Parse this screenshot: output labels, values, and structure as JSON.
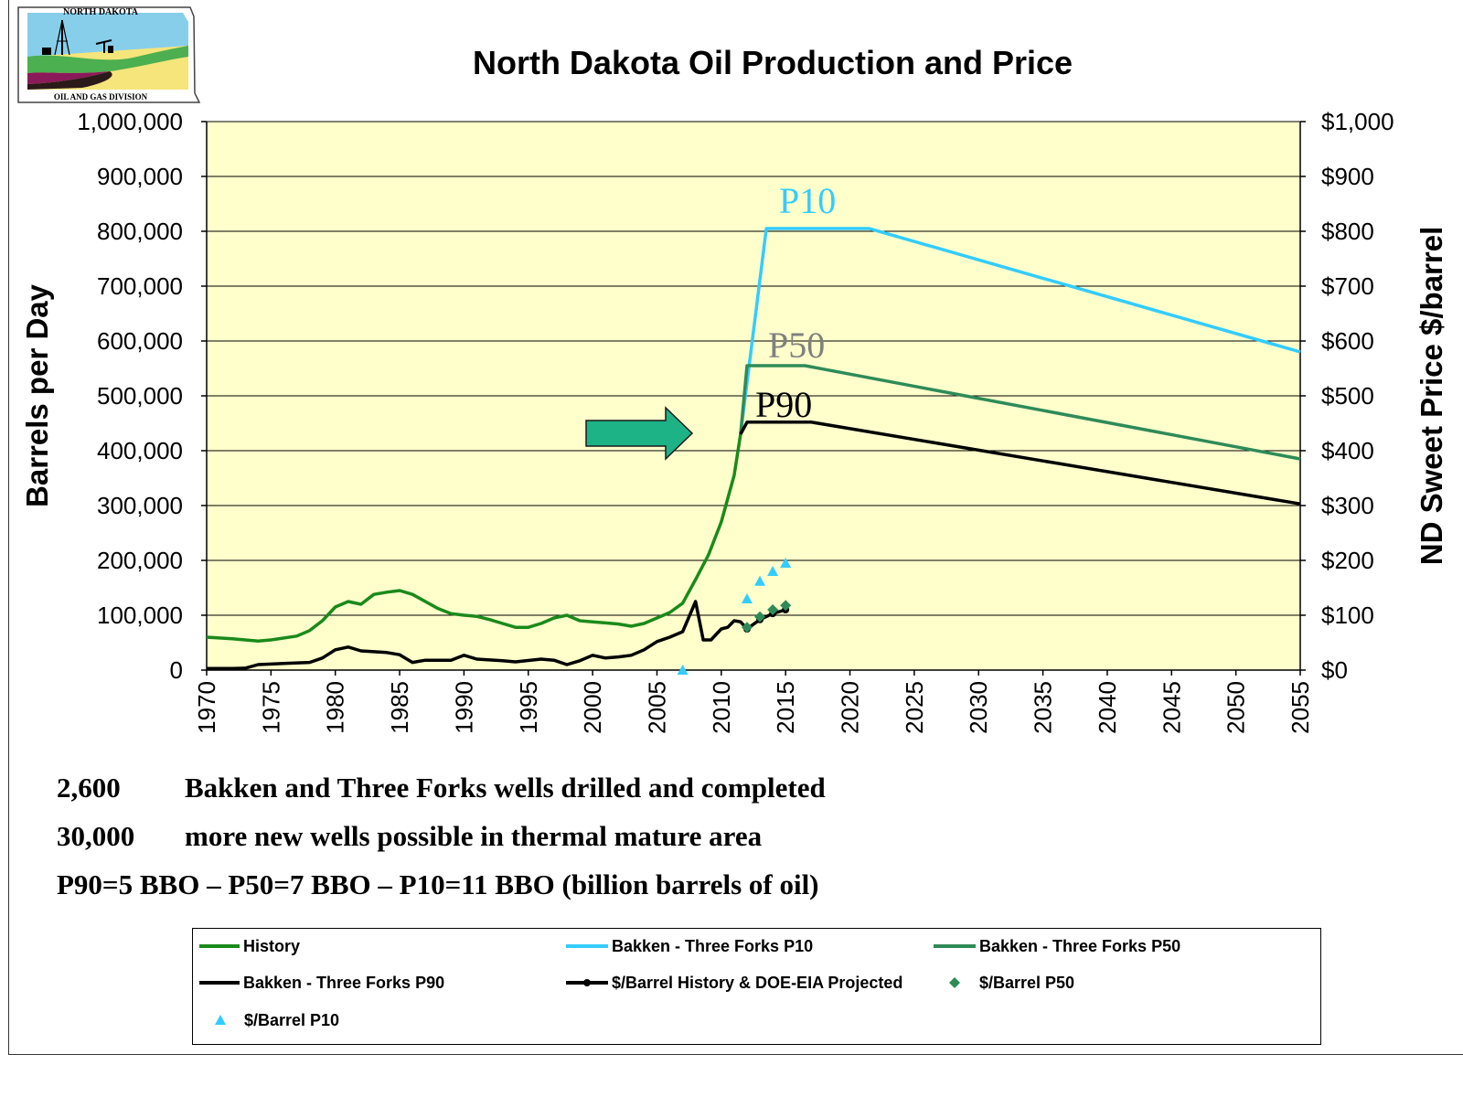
{
  "logo": {
    "top_text": "NORTH DAKOTA",
    "bottom_text": "OIL AND GAS DIVISION"
  },
  "colors": {
    "plot_bg": "#ffffcc",
    "history": "#1a8a1a",
    "p10": "#33ccff",
    "p50": "#2e8b57",
    "p90": "#000000",
    "price": "#000000",
    "arrow": "#1db386",
    "label_p50": "#808080"
  },
  "chart_data": {
    "type": "line",
    "title": "North Dakota Oil Production and Price",
    "ylabel": "Barrels per Day",
    "y2label": "ND Sweet Price $/barrel",
    "xlim": [
      1970,
      2055
    ],
    "ylim": [
      0,
      1000000
    ],
    "y2lim": [
      0,
      1000
    ],
    "x_ticks": [
      "1970",
      "1975",
      "1980",
      "1985",
      "1990",
      "1995",
      "2000",
      "2005",
      "2010",
      "2015",
      "2020",
      "2025",
      "2030",
      "2035",
      "2040",
      "2045",
      "2050",
      "2055"
    ],
    "y_ticks": [
      "0",
      "100,000",
      "200,000",
      "300,000",
      "400,000",
      "500,000",
      "600,000",
      "700,000",
      "800,000",
      "900,000",
      "1,000,000"
    ],
    "y2_ticks": [
      "$0",
      "$100",
      "$200",
      "$300",
      "$400",
      "$500",
      "$600",
      "$700",
      "$800",
      "$900",
      "$1,000"
    ],
    "grid": true,
    "legend_position": "bottom",
    "series": [
      {
        "name": "History",
        "axis": "left",
        "points": [
          [
            1970,
            60000
          ],
          [
            1972,
            57000
          ],
          [
            1974,
            53000
          ],
          [
            1975,
            55000
          ],
          [
            1977,
            62000
          ],
          [
            1978,
            72000
          ],
          [
            1979,
            90000
          ],
          [
            1980,
            115000
          ],
          [
            1981,
            125000
          ],
          [
            1982,
            120000
          ],
          [
            1983,
            138000
          ],
          [
            1984,
            142000
          ],
          [
            1985,
            145000
          ],
          [
            1986,
            138000
          ],
          [
            1987,
            125000
          ],
          [
            1988,
            112000
          ],
          [
            1989,
            103000
          ],
          [
            1990,
            100000
          ],
          [
            1991,
            98000
          ],
          [
            1992,
            92000
          ],
          [
            1993,
            85000
          ],
          [
            1994,
            78000
          ],
          [
            1995,
            78000
          ],
          [
            1996,
            85000
          ],
          [
            1997,
            95000
          ],
          [
            1998,
            100000
          ],
          [
            1999,
            90000
          ],
          [
            2000,
            88000
          ],
          [
            2001,
            86000
          ],
          [
            2002,
            84000
          ],
          [
            2003,
            80000
          ],
          [
            2004,
            85000
          ],
          [
            2005,
            95000
          ],
          [
            2006,
            105000
          ],
          [
            2007,
            122000
          ],
          [
            2008,
            165000
          ],
          [
            2009,
            210000
          ],
          [
            2010,
            270000
          ],
          [
            2011,
            355000
          ],
          [
            2011.5,
            430000
          ]
        ]
      },
      {
        "name": "Bakken - Three Forks P10",
        "axis": "left",
        "points": [
          [
            2011.5,
            430000
          ],
          [
            2013.5,
            805000
          ],
          [
            2021.5,
            805000
          ],
          [
            2055,
            580000
          ]
        ]
      },
      {
        "name": "Bakken - Three Forks P50",
        "axis": "left",
        "points": [
          [
            2011.5,
            430000
          ],
          [
            2012,
            555000
          ],
          [
            2016.5,
            555000
          ],
          [
            2055,
            385000
          ]
        ]
      },
      {
        "name": "Bakken - Three Forks P90",
        "axis": "left",
        "points": [
          [
            2011.5,
            430000
          ],
          [
            2012,
            452000
          ],
          [
            2017,
            452000
          ],
          [
            2055,
            303000
          ]
        ]
      },
      {
        "name": "$/Barrel History & DOE-EIA Projected",
        "axis": "right",
        "points": [
          [
            1970,
            3
          ],
          [
            1972,
            3
          ],
          [
            1973,
            3.5
          ],
          [
            1974,
            10
          ],
          [
            1976,
            12
          ],
          [
            1978,
            14
          ],
          [
            1979,
            22
          ],
          [
            1980,
            37
          ],
          [
            1981,
            42
          ],
          [
            1982,
            35
          ],
          [
            1984,
            32
          ],
          [
            1985,
            28
          ],
          [
            1986,
            14
          ],
          [
            1987,
            18
          ],
          [
            1989,
            18
          ],
          [
            1990,
            27
          ],
          [
            1991,
            20
          ],
          [
            1993,
            17
          ],
          [
            1994,
            15
          ],
          [
            1996,
            20
          ],
          [
            1997,
            18
          ],
          [
            1998,
            10
          ],
          [
            1999,
            17
          ],
          [
            2000,
            27
          ],
          [
            2001,
            22
          ],
          [
            2002,
            24
          ],
          [
            2003,
            27
          ],
          [
            2004,
            37
          ],
          [
            2005,
            52
          ],
          [
            2006,
            60
          ],
          [
            2007,
            70
          ],
          [
            2008,
            125
          ],
          [
            2008.6,
            55
          ],
          [
            2009.2,
            55
          ],
          [
            2010,
            75
          ],
          [
            2010.5,
            78
          ],
          [
            2011,
            90
          ],
          [
            2011.5,
            88
          ],
          [
            2012,
            75
          ],
          [
            2013,
            92
          ],
          [
            2014,
            103
          ],
          [
            2015,
            110
          ]
        ]
      },
      {
        "name": "$/Barrel P50",
        "axis": "right",
        "type": "scatter",
        "points": [
          [
            2012,
            78
          ],
          [
            2013,
            97
          ],
          [
            2014,
            110
          ],
          [
            2015,
            118
          ]
        ]
      },
      {
        "name": "$/Barrel P10",
        "axis": "right",
        "type": "scatter",
        "points": [
          [
            2007,
            0
          ],
          [
            2012,
            130
          ],
          [
            2013,
            162
          ],
          [
            2014,
            180
          ],
          [
            2015,
            195
          ]
        ]
      }
    ],
    "annotations": [
      {
        "text": "P10",
        "color": "p10"
      },
      {
        "text": "P50",
        "color": "label_p50"
      },
      {
        "text": "P90",
        "color": "p90"
      }
    ]
  },
  "notes": [
    {
      "num": "2,600",
      "text": "Bakken and Three Forks wells drilled and completed"
    },
    {
      "num": "30,000",
      "text": "more new wells possible in thermal mature area"
    },
    {
      "num": "",
      "text": "P90=5 BBO – P50=7 BBO – P10=11 BBO (billion barrels of oil)"
    }
  ],
  "legend": {
    "history": "History",
    "p10": "Bakken - Three Forks P10",
    "p50": "Bakken - Three Forks P50",
    "p90": "Bakken - Three Forks P90",
    "price": "$/Barrel History & DOE-EIA Projected",
    "price_p50": "$/Barrel P50",
    "price_p10": "$/Barrel P10"
  }
}
